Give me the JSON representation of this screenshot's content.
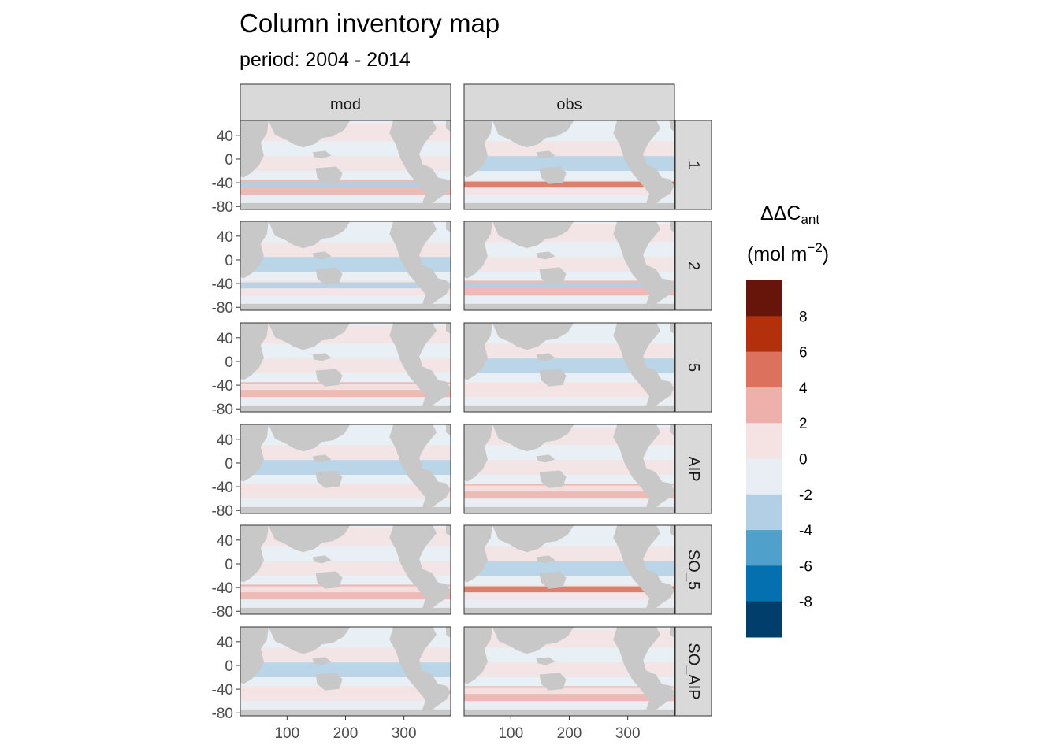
{
  "chart_data": {
    "type": "heatmap",
    "title": "Column inventory map",
    "subtitle": "period: 2004 - 2014",
    "columns": [
      "mod",
      "obs"
    ],
    "rows": [
      "1",
      "2",
      "5",
      "AIP",
      "SO_5",
      "SO_AIP"
    ],
    "x_ticks": [
      "100",
      "200",
      "300"
    ],
    "y_ticks": [
      "40",
      "0",
      "-40",
      "-80"
    ],
    "xlim": [
      20,
      380
    ],
    "ylim": [
      -85,
      65
    ],
    "legend": {
      "title_main": "ΔΔC",
      "title_sub": "ant",
      "unit_main": "(mol m",
      "unit_sup": "−2",
      "unit_close": ")",
      "placement": "right",
      "tick_labels": [
        "8",
        "6",
        "4",
        "2",
        "0",
        "-2",
        "-4",
        "-6",
        "-8"
      ],
      "colors": [
        "#67150a",
        "#b2300c",
        "#dc725d",
        "#edb0aa",
        "#f5e2e2",
        "#e8eef4",
        "#b2cfe5",
        "#4fa1cc",
        "#0570b0",
        "#023e6b"
      ]
    },
    "land_color": "#c8c8c8",
    "ocean_background": "#e8eef4"
  }
}
